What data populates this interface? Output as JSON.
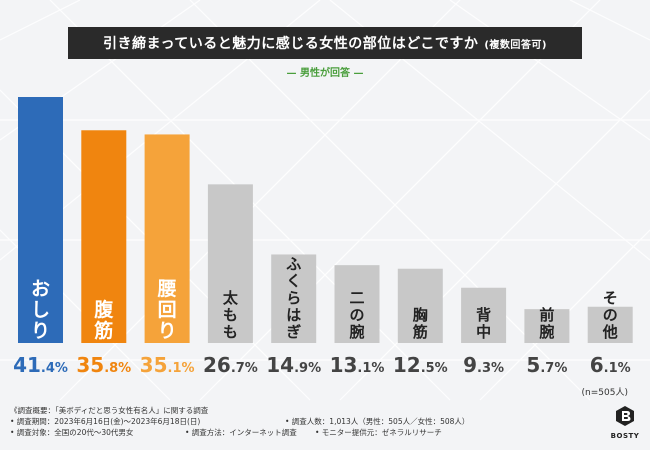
{
  "header": {
    "title": "引き締まっていると魅力に感じる女性の部位はどこですか",
    "title_note": "(複数回答可)",
    "subtitle": "— 男性が回答 —"
  },
  "chart_data": {
    "type": "bar",
    "title": "引き締まっていると魅力に感じる女性の部位はどこですか(複数回答可)",
    "categories": [
      "おしり",
      "腹筋",
      "腰回り",
      "太もも",
      "ふくらはぎ",
      "二の腕",
      "胸筋",
      "背中",
      "前腕",
      "その他"
    ],
    "values": [
      41.4,
      35.8,
      35.1,
      26.7,
      14.9,
      13.1,
      12.5,
      9.3,
      5.7,
      6.1
    ],
    "value_labels": [
      {
        "int": "41",
        "dec": ".4%"
      },
      {
        "int": "35",
        "dec": ".8%"
      },
      {
        "int": "35",
        "dec": ".1%"
      },
      {
        "int": "26",
        "dec": ".7%"
      },
      {
        "int": "14",
        "dec": ".9%"
      },
      {
        "int": "13",
        "dec": ".1%"
      },
      {
        "int": "12",
        "dec": ".5%"
      },
      {
        "int": "9",
        "dec": ".3%"
      },
      {
        "int": "5",
        "dec": ".7%"
      },
      {
        "int": "6",
        "dec": ".1%"
      }
    ],
    "colors": [
      "#2d6bb8",
      "#f0850f",
      "#f5a33a",
      "#c8c8c8",
      "#c8c8c8",
      "#c8c8c8",
      "#c8c8c8",
      "#c8c8c8",
      "#c8c8c8",
      "#c8c8c8"
    ],
    "label_colors": [
      "#ffffff",
      "#ffffff",
      "#ffffff",
      "#222222",
      "#222222",
      "#222222",
      "#222222",
      "#222222",
      "#222222",
      "#222222"
    ],
    "value_colors": [
      "#2d6bb8",
      "#f0850f",
      "#f5a33a",
      "#444444",
      "#444444",
      "#444444",
      "#444444",
      "#444444",
      "#444444",
      "#444444"
    ],
    "ylim": [
      0,
      43
    ],
    "sample_size": "(n=505人)"
  },
  "footer": {
    "summary": "《調査概要：「美ボディだと思う女性有名人」に関する調査",
    "period": "• 調査期間：2023年6月16日(金)～2023年6月18日(日)",
    "respondents": "• 調査人数：1,013人（男性：505人／女性：508人）",
    "target": "• 調査対象：全国の20代～30代男女",
    "method": "• 調査方法：インターネット調査",
    "monitor": "• モニター提供元：ゼネラルリサーチ"
  },
  "brand": {
    "name": "BOSTY",
    "logo_icon": "bosty-logo-icon",
    "color": "#222222"
  }
}
